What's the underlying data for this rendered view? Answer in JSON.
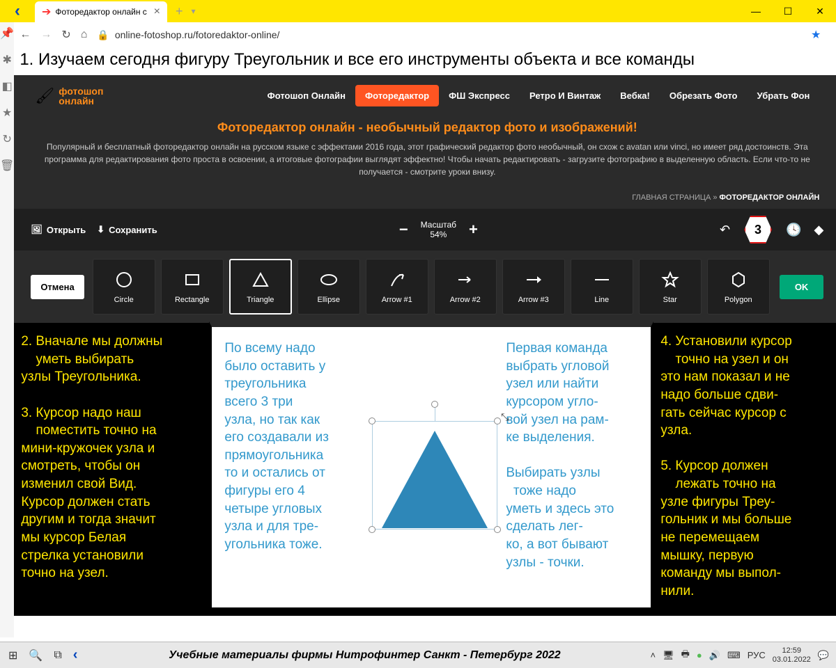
{
  "browser": {
    "tab_title": "Фоторедактор онлайн с",
    "url_display": "online-fotoshop.ru/fotoredaktor-online/",
    "new_tab": "+",
    "win": {
      "min": "—",
      "max": "☐",
      "close": "✕"
    }
  },
  "heading": "1. Изучаем сегодня фигуру Треугольник и все его инструменты объекта и все команды",
  "app": {
    "logo": {
      "line1": "фотошоп",
      "line2": "онлайн",
      "brush": "🖌"
    },
    "nav": {
      "items": [
        "Фотошоп Онлайн",
        "Фоторедактор",
        "ФШ Экспресс",
        "Ретро И Винтаж",
        "Вебка!",
        "Обрезать Фото",
        "Убрать Фон"
      ],
      "active_index": 1
    },
    "promo_title": "Фоторедактор онлайн - необычный редактор фото и изображений!",
    "promo_text": "Популярный и бесплатный фоторедактор онлайн на русском языке с эффектами 2016 года, этот графический редактор фото необычный, он схож с avatan или vinci, но имеет ряд достоинств. Эта программа для редактирования фото проста в освоении, а итоговые фотографии выглядят эффектно! Чтобы начать редактировать - загрузите фотографию в выделенную область. Если что-то не получается - смотрите уроки внизу.",
    "breadcrumb": {
      "home": "ГЛАВНАЯ СТРАНИЦА",
      "sep": " » ",
      "current": "ФОТОРЕДАКТОР ОНЛАЙН"
    },
    "toolbar": {
      "open": "Открыть",
      "save": "Сохранить",
      "zoom_label": "Масштаб",
      "zoom_value": "54%",
      "badge": "3"
    },
    "shapes": {
      "cancel": "Отмена",
      "ok": "OK",
      "tools": [
        {
          "label": "Circle"
        },
        {
          "label": "Rectangle"
        },
        {
          "label": "Triangle"
        },
        {
          "label": "Ellipse"
        },
        {
          "label": "Arrow #1"
        },
        {
          "label": "Arrow #2"
        },
        {
          "label": "Arrow #3"
        },
        {
          "label": "Line"
        },
        {
          "label": "Star"
        },
        {
          "label": "Polygon"
        }
      ],
      "selected_index": 2
    }
  },
  "inst": {
    "left": "2. Вначале мы должны\n    уметь выбирать\nузлы Треугольника.\n\n3. Курсор надо наш\n    поместить точно на\nмини-кружочек узла и\nсмотреть, чтобы он\nизменил свой Вид.\nКурсор должен стать\nдругим и тогда значит\nмы курсор Белая\nстрелка установили\nточно на узел.",
    "right": "4. Установили курсор\n    точно на узел и он\nэто нам показал и не\nнадо больше сдви-\nгать сейчас курсор с\nузла.\n\n5. Курсор должен\n    лежать точно на\nузле фигуры Треу-\nгольник и мы больше\nне перемещаем\nмышку, первую\nкоманду мы выпол-\nнили.",
    "canvas_l": "По всему надо\nбыло оставить у\nтреугольника\nвсего 3 три\nузла, но так как\nего создавали из\nпрямоугольника\nто и остались от\nфигуры его 4\nчетыре угловых\nузла и для тре-\nугольника тоже.",
    "canvas_r": "Первая команда\nвыбрать угловой\nузел или найти\nкурсором угло-\nвой узел на рам-\nке выделения.\n\nВыбирать узлы\n  тоже надо\nуметь и здесь это\nсделать лег-\nко, а вот бывают\nузлы - точки."
  },
  "taskbar": {
    "center": "Учебные материалы фирмы Нитрофинтер  Санкт - Петербург  2022",
    "lang": "РУС",
    "time": "12:59",
    "date": "03.01.2022"
  },
  "style": {
    "triangle_color": "#2e87b8",
    "selection_border": "#aecde0",
    "accent_orange": "#ff8c1a",
    "active_nav": "#ff5522",
    "badge_border": "#e60000",
    "ok_green": "#00a878",
    "inst_text": "#ffe600",
    "canvas_text": "#3399cc"
  }
}
